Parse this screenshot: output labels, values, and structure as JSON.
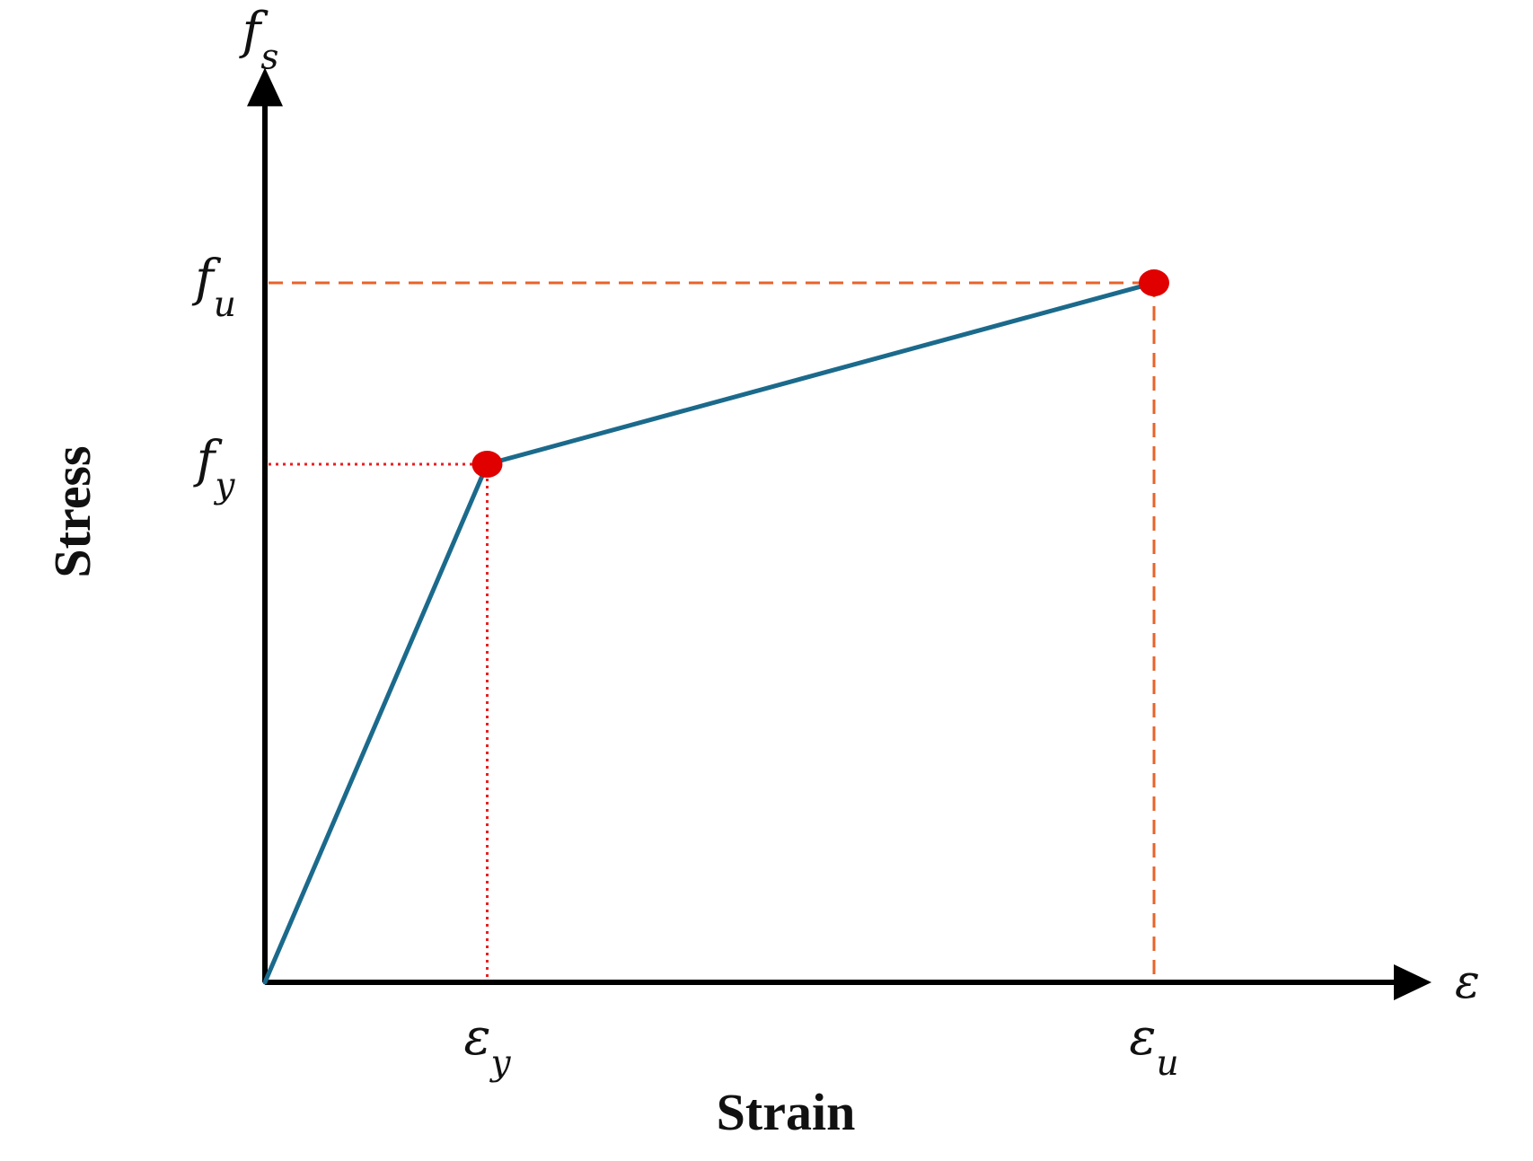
{
  "chart_data": {
    "type": "line",
    "title": "",
    "xlabel": "Strain",
    "ylabel": "Stress",
    "x_axis_symbol": {
      "base": "ε",
      "sub": ""
    },
    "y_axis_symbol": {
      "base": "f",
      "sub": "s"
    },
    "series": [
      {
        "points": [
          {
            "x": 0,
            "y": 0
          },
          {
            "x": 1,
            "y": 1
          },
          {
            "x": 4,
            "y": 1.35
          }
        ]
      }
    ],
    "key_points": [
      {
        "label_x": {
          "base": "ε",
          "sub": "y"
        },
        "label_y": {
          "base": "f",
          "sub": "y"
        },
        "x": 1,
        "y": 1,
        "guide_style": "dotted"
      },
      {
        "label_x": {
          "base": "ε",
          "sub": "u"
        },
        "label_y": {
          "base": "f",
          "sub": "u"
        },
        "x": 4,
        "y": 1.35,
        "guide_style": "dashed"
      }
    ],
    "xlim": [
      0,
      5.2
    ],
    "ylim": [
      0,
      1.8
    ],
    "grid": false,
    "legend": "none",
    "colors": {
      "curve": "#1b6a8c",
      "points": "#e00000",
      "yield_guides": "#e82020",
      "ultimate_guides": "#e8632a",
      "axes": "#000000"
    }
  }
}
